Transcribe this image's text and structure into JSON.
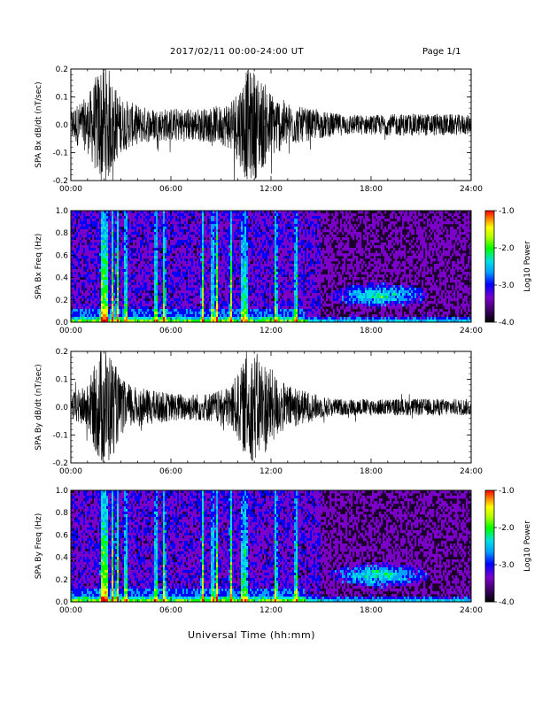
{
  "header": {
    "date_range": "2017/02/11   00:00-24:00 UT",
    "page": "Page 1/1"
  },
  "xaxis_title": "Universal Time (hh:mm)",
  "colors": {
    "colormap": [
      "#000000",
      "#3a0060",
      "#7a00c8",
      "#0000ff",
      "#00a0ff",
      "#00e0e0",
      "#00ff00",
      "#b0ff00",
      "#ffff00",
      "#ff8000",
      "#ff0000"
    ]
  },
  "chart_data": [
    {
      "type": "line",
      "id": "bx_waveform",
      "ylabel": "SPA Bx dB/dt (nT/sec)",
      "ylim": [
        -0.2,
        0.2
      ],
      "y_ticks": [
        "0.2",
        "0.1",
        "0.0",
        "-0.1",
        "-0.2"
      ],
      "xlim": [
        "00:00",
        "24:00"
      ],
      "x_ticks": [
        "00:00",
        "06:00",
        "12:00",
        "18:00",
        "24:00"
      ],
      "envelope_hours": [
        0,
        1,
        1.8,
        2.2,
        2.5,
        3,
        4,
        5,
        6,
        7,
        8,
        9,
        9.5,
        10,
        10.5,
        11,
        11.5,
        12,
        12.5,
        13,
        14,
        15,
        16,
        18,
        20,
        22,
        24
      ],
      "envelope_amplitude": [
        0.06,
        0.1,
        0.22,
        0.22,
        0.16,
        0.1,
        0.07,
        0.06,
        0.06,
        0.06,
        0.06,
        0.07,
        0.09,
        0.13,
        0.2,
        0.2,
        0.16,
        0.12,
        0.1,
        0.08,
        0.06,
        0.05,
        0.04,
        0.035,
        0.04,
        0.04,
        0.035
      ]
    },
    {
      "type": "heatmap",
      "id": "bx_spectrogram",
      "ylabel": "SPA Bx Freq (Hz)",
      "ylim": [
        0.0,
        1.0
      ],
      "y_ticks": [
        "1.0",
        "0.8",
        "0.6",
        "0.4",
        "0.2",
        "0.0"
      ],
      "xlim": [
        "00:00",
        "24:00"
      ],
      "x_ticks": [
        "00:00",
        "06:00",
        "12:00",
        "18:00",
        "24:00"
      ],
      "colorbar_label": "Log10 Power",
      "colorbar_range": [
        -4.0,
        -1.0
      ],
      "colorbar_ticks": [
        "-1.0",
        "-2.0",
        "-3.0",
        "-4.0"
      ]
    },
    {
      "type": "line",
      "id": "by_waveform",
      "ylabel": "SPA By dB/dt (nT/sec)",
      "ylim": [
        -0.2,
        0.2
      ],
      "y_ticks": [
        "0.2",
        "0.1",
        "0.0",
        "-0.1",
        "-0.2"
      ],
      "xlim": [
        "00:00",
        "24:00"
      ],
      "x_ticks": [
        "00:00",
        "06:00",
        "12:00",
        "18:00",
        "24:00"
      ],
      "envelope_hours": [
        0,
        1,
        1.8,
        2.2,
        2.5,
        3,
        4,
        5,
        6,
        7,
        8,
        9,
        9.5,
        10,
        10.5,
        11,
        11.5,
        12,
        12.5,
        13,
        14,
        15,
        16,
        18,
        20,
        22,
        24
      ],
      "envelope_amplitude": [
        0.05,
        0.08,
        0.22,
        0.22,
        0.18,
        0.1,
        0.07,
        0.06,
        0.05,
        0.05,
        0.05,
        0.06,
        0.08,
        0.12,
        0.18,
        0.2,
        0.18,
        0.14,
        0.1,
        0.08,
        0.06,
        0.04,
        0.03,
        0.03,
        0.03,
        0.03,
        0.03
      ]
    },
    {
      "type": "heatmap",
      "id": "by_spectrogram",
      "ylabel": "SPA By Freq (Hz)",
      "ylim": [
        0.0,
        1.0
      ],
      "y_ticks": [
        "1.0",
        "0.8",
        "0.6",
        "0.4",
        "0.2",
        "0.0"
      ],
      "xlim": [
        "00:00",
        "24:00"
      ],
      "x_ticks": [
        "00:00",
        "06:00",
        "12:00",
        "18:00",
        "24:00"
      ],
      "colorbar_label": "Log10 Power",
      "colorbar_range": [
        -4.0,
        -1.0
      ],
      "colorbar_ticks": [
        "-1.0",
        "-2.0",
        "-3.0",
        "-4.0"
      ]
    }
  ]
}
